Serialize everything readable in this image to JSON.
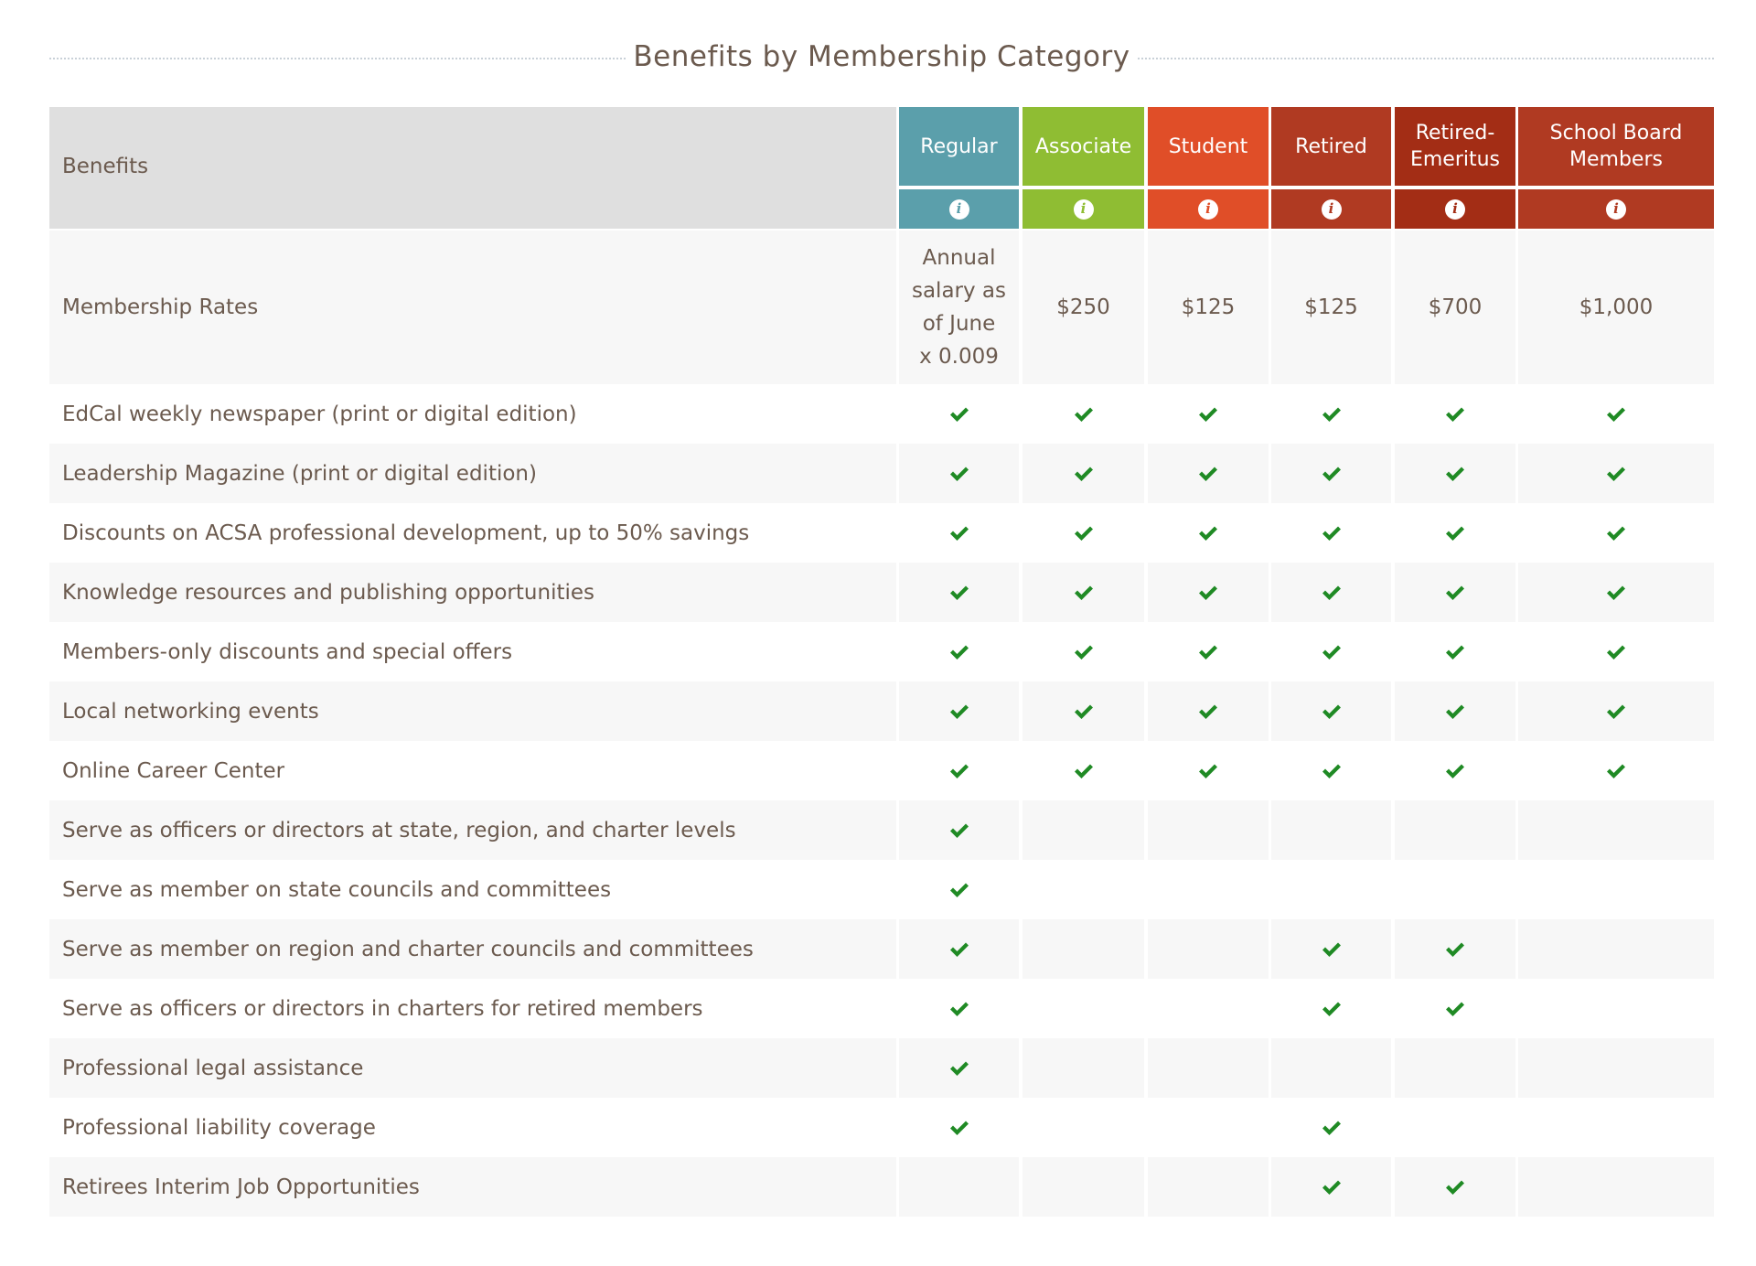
{
  "page": {
    "title": "Benefits by Membership Category"
  },
  "table": {
    "benefits_header": "Benefits",
    "columns": [
      {
        "key": "regular",
        "label": "Regular",
        "color": "#5b9fab"
      },
      {
        "key": "associate",
        "label": "Associate",
        "color": "#8fbd33"
      },
      {
        "key": "student",
        "label": "Student",
        "color": "#e04e28"
      },
      {
        "key": "retired",
        "label": "Retired",
        "color": "#b03a22"
      },
      {
        "key": "retired_emeritus",
        "label": "Retired-\nEmeritus",
        "color": "#a32d15"
      },
      {
        "key": "school_board",
        "label": "School Board\nMembers",
        "color": "#b03a22"
      }
    ],
    "info_icon": "info-icon",
    "check_icon": "check-icon",
    "check_color": "#1f8a24",
    "rates": {
      "label": "Membership Rates",
      "values": [
        "Annual salary as of June x 0.009",
        "$250",
        "$125",
        "$125",
        "$700",
        "$1,000"
      ],
      "regular_lines": [
        "Annual",
        "salary as",
        "of June",
        "x 0.009"
      ]
    },
    "rows": [
      {
        "label": "EdCal weekly newspaper (print or digital edition)",
        "checks": [
          true,
          true,
          true,
          true,
          true,
          true
        ]
      },
      {
        "label": "Leadership Magazine (print or digital edition)",
        "checks": [
          true,
          true,
          true,
          true,
          true,
          true
        ]
      },
      {
        "label": "Discounts on ACSA professional development, up to 50% savings",
        "checks": [
          true,
          true,
          true,
          true,
          true,
          true
        ]
      },
      {
        "label": "Knowledge resources and publishing opportunities",
        "checks": [
          true,
          true,
          true,
          true,
          true,
          true
        ]
      },
      {
        "label": "Members-only discounts and special offers",
        "checks": [
          true,
          true,
          true,
          true,
          true,
          true
        ]
      },
      {
        "label": "Local networking events",
        "checks": [
          true,
          true,
          true,
          true,
          true,
          true
        ]
      },
      {
        "label": "Online Career Center",
        "checks": [
          true,
          true,
          true,
          true,
          true,
          true
        ]
      },
      {
        "label": "Serve as officers or directors at state, region, and charter levels",
        "checks": [
          true,
          false,
          false,
          false,
          false,
          false
        ]
      },
      {
        "label": "Serve as member on state councils and committees",
        "checks": [
          true,
          false,
          false,
          false,
          false,
          false
        ]
      },
      {
        "label": "Serve as member on region and charter councils and committees",
        "checks": [
          true,
          false,
          false,
          true,
          true,
          false
        ]
      },
      {
        "label": "Serve as officers or directors in charters for retired members",
        "checks": [
          true,
          false,
          false,
          true,
          true,
          false
        ]
      },
      {
        "label": "Professional legal assistance",
        "checks": [
          true,
          false,
          false,
          false,
          false,
          false
        ]
      },
      {
        "label": "Professional liability coverage",
        "checks": [
          true,
          false,
          false,
          true,
          false,
          false
        ]
      },
      {
        "label": "Retirees Interim Job Opportunities",
        "checks": [
          false,
          false,
          false,
          true,
          true,
          false
        ]
      }
    ]
  }
}
